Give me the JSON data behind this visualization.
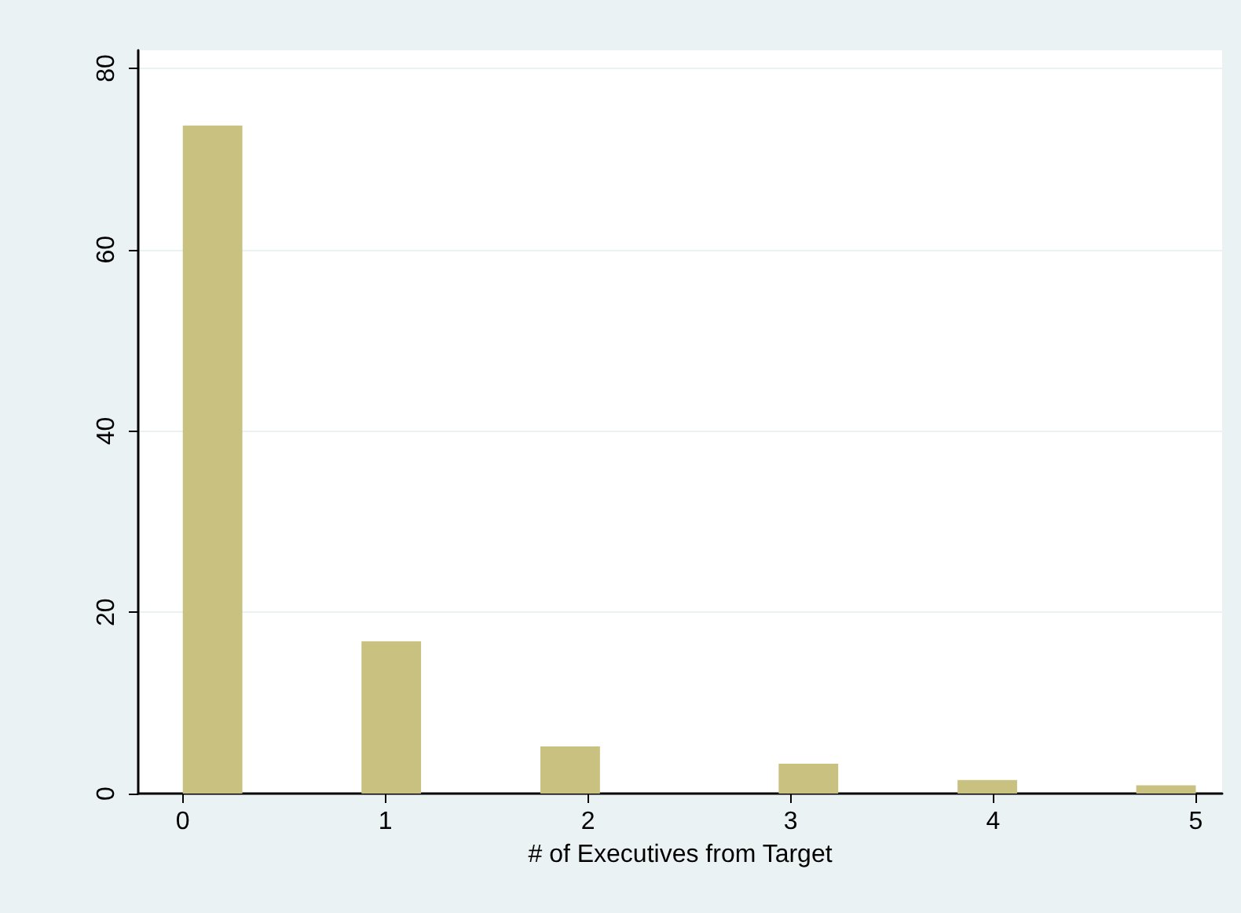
{
  "chart_data": {
    "type": "histogram",
    "xlabel": "# of Executives from Target",
    "color": "#c9c17f",
    "bins": [
      0,
      0.294,
      0.588,
      0.882,
      1.176,
      1.471,
      1.765,
      2.059,
      2.353,
      2.647,
      2.941,
      3.235,
      3.529,
      3.824,
      4.118,
      4.412,
      4.706,
      5
    ],
    "values": [
      73.7,
      0,
      0,
      16.8,
      0,
      0,
      5.2,
      0,
      0,
      0,
      3.3,
      0,
      0,
      1.5,
      0,
      0,
      0.9
    ],
    "xlim": [
      -0.22,
      5.13
    ],
    "xticks": [
      0,
      1,
      2,
      3,
      4,
      5
    ],
    "ylim": [
      0,
      82
    ],
    "yticks": [
      0,
      20,
      40,
      60,
      80
    ],
    "grid": "y"
  }
}
